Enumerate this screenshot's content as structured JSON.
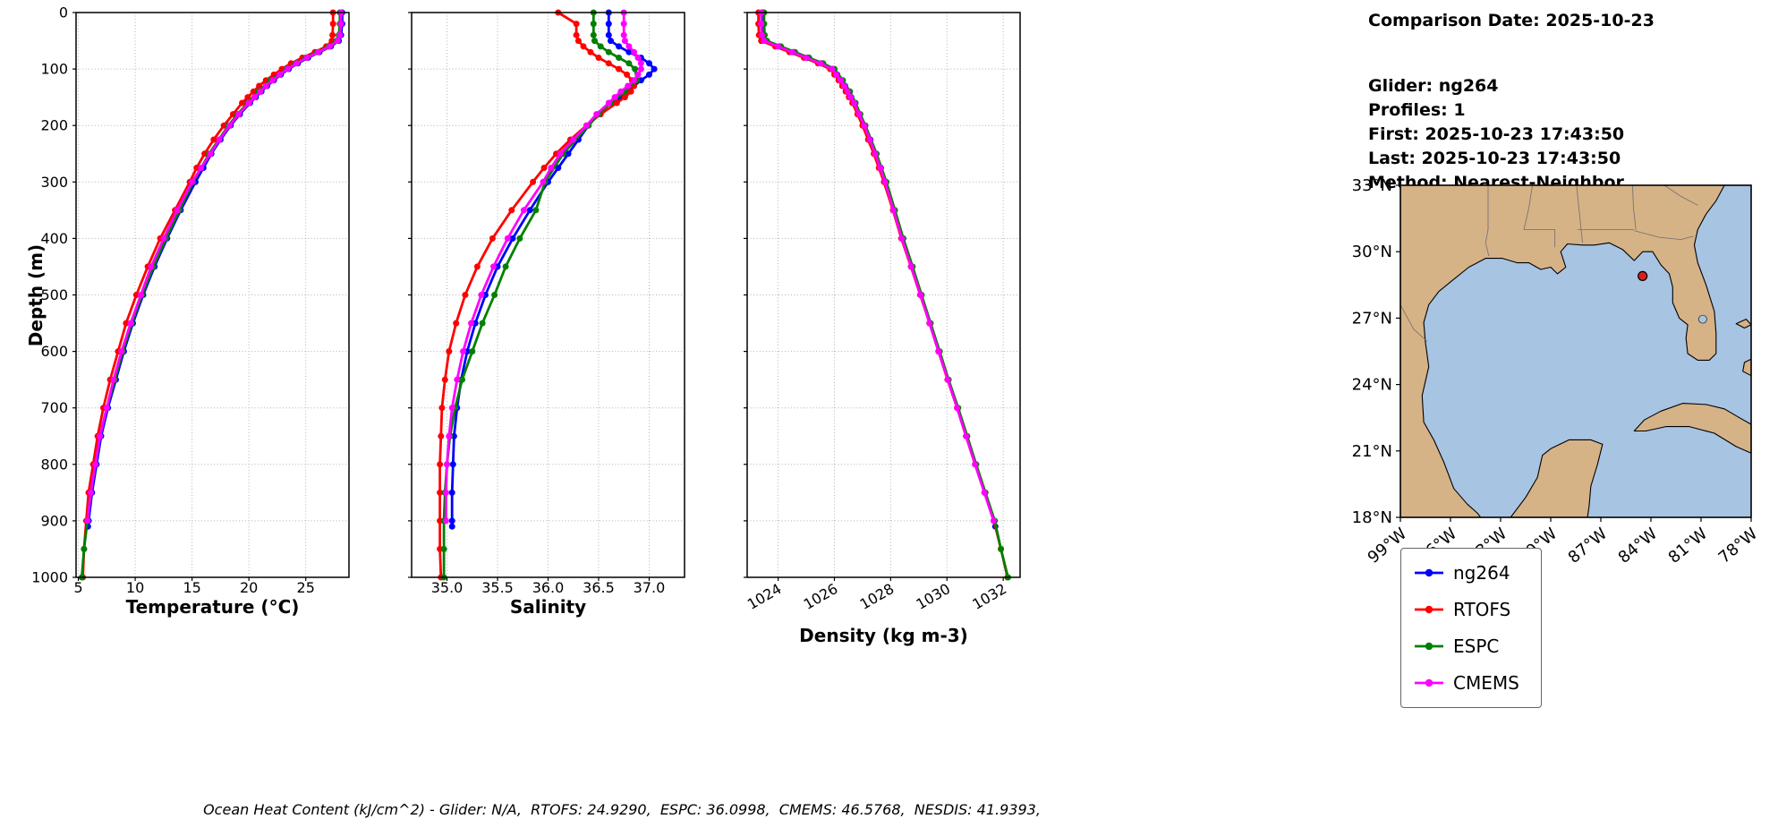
{
  "info": {
    "comparison_date": "Comparison Date: 2025-10-23",
    "glider": "Glider: ng264",
    "profiles": "Profiles: 1",
    "first": "First: 2025-10-23 17:43:50",
    "last": "Last: 2025-10-23 17:43:50",
    "method": "Method: Nearest-Neighbor"
  },
  "footer": "Ocean Heat Content (kJ/cm^2) - Glider: N/A,  RTOFS: 24.9290,  ESPC: 36.0998,  CMEMS: 46.5768,  NESDIS: 41.9393,",
  "legend": {
    "entries": [
      {
        "label": "ng264",
        "color": "#0000ff"
      },
      {
        "label": "RTOFS",
        "color": "#ff0000"
      },
      {
        "label": "ESPC",
        "color": "#008000"
      },
      {
        "label": "CMEMS",
        "color": "#ff00ff"
      }
    ]
  },
  "map": {
    "lon_range": [
      -99,
      -78
    ],
    "lat_range": [
      18,
      33
    ],
    "xticks": [
      -99,
      -96,
      -93,
      -90,
      -87,
      -84,
      -81,
      -78
    ],
    "xtick_labels": [
      "99°W",
      "96°W",
      "93°W",
      "90°W",
      "87°W",
      "84°W",
      "81°W",
      "78°W"
    ],
    "yticks": [
      33,
      30,
      27,
      24,
      21,
      18
    ],
    "ytick_labels": [
      "33°N",
      "30°N",
      "27°N",
      "24°N",
      "21°N",
      "18°N"
    ],
    "land_color": "#d6b287",
    "ocean_color": "#a7c4e2",
    "marker": {
      "name": "glider-position",
      "lon": -84.5,
      "lat": 28.9,
      "color": "#d62020"
    },
    "lake": {
      "name": "lake-okeechobee",
      "lon": -80.9,
      "lat": 26.95
    },
    "land": [
      [
        [
          -99,
          33
        ],
        [
          -79.6,
          33
        ],
        [
          -80.1,
          32.3
        ],
        [
          -80.7,
          31.7
        ],
        [
          -81.2,
          31.0
        ],
        [
          -81.4,
          30.3
        ],
        [
          -81.2,
          29.5
        ],
        [
          -80.7,
          28.5
        ],
        [
          -80.2,
          27.3
        ],
        [
          -80.1,
          26.3
        ],
        [
          -80.1,
          25.4
        ],
        [
          -80.5,
          25.1
        ],
        [
          -81.2,
          25.1
        ],
        [
          -81.8,
          25.4
        ],
        [
          -81.9,
          26.1
        ],
        [
          -81.8,
          26.7
        ],
        [
          -82.3,
          27.0
        ],
        [
          -82.7,
          27.7
        ],
        [
          -82.7,
          28.4
        ],
        [
          -82.9,
          29.0
        ],
        [
          -83.4,
          29.4
        ],
        [
          -83.9,
          30.0
        ],
        [
          -84.5,
          30.0
        ],
        [
          -85.0,
          29.6
        ],
        [
          -85.7,
          30.1
        ],
        [
          -86.5,
          30.4
        ],
        [
          -87.4,
          30.3
        ],
        [
          -88.1,
          30.3
        ],
        [
          -89.0,
          30.35
        ],
        [
          -89.4,
          30.0
        ],
        [
          -89.1,
          29.3
        ],
        [
          -89.6,
          29.0
        ],
        [
          -90.0,
          29.3
        ],
        [
          -90.6,
          29.2
        ],
        [
          -91.3,
          29.5
        ],
        [
          -92.0,
          29.5
        ],
        [
          -92.9,
          29.7
        ],
        [
          -93.9,
          29.7
        ],
        [
          -94.9,
          29.3
        ],
        [
          -95.9,
          28.7
        ],
        [
          -96.7,
          28.2
        ],
        [
          -97.3,
          27.6
        ],
        [
          -97.6,
          26.8
        ],
        [
          -97.5,
          25.9
        ],
        [
          -97.3,
          24.8
        ],
        [
          -97.7,
          23.5
        ],
        [
          -97.6,
          22.3
        ],
        [
          -97.0,
          21.5
        ],
        [
          -96.4,
          20.5
        ],
        [
          -95.8,
          19.3
        ],
        [
          -95.0,
          18.6
        ],
        [
          -94.4,
          18.2
        ],
        [
          -94.2,
          18.0
        ],
        [
          -99,
          18
        ]
      ],
      [
        [
          -92.4,
          18.0
        ],
        [
          -91.5,
          18.9
        ],
        [
          -90.8,
          19.8
        ],
        [
          -90.5,
          20.8
        ],
        [
          -90.0,
          21.1
        ],
        [
          -88.9,
          21.5
        ],
        [
          -87.6,
          21.5
        ],
        [
          -86.9,
          21.3
        ],
        [
          -87.2,
          20.4
        ],
        [
          -87.6,
          19.4
        ],
        [
          -87.7,
          18.5
        ],
        [
          -87.8,
          18.0
        ]
      ],
      [
        [
          -85.0,
          21.9
        ],
        [
          -84.4,
          22.4
        ],
        [
          -83.4,
          22.8
        ],
        [
          -82.1,
          23.15
        ],
        [
          -80.7,
          23.1
        ],
        [
          -79.6,
          22.9
        ],
        [
          -78.7,
          22.5
        ],
        [
          -78.0,
          22.2
        ],
        [
          -78.0,
          20.9
        ],
        [
          -78.9,
          21.2
        ],
        [
          -80.2,
          21.8
        ],
        [
          -81.7,
          22.1
        ],
        [
          -83.1,
          22.1
        ],
        [
          -84.3,
          21.9
        ]
      ],
      [
        [
          -78.9,
          26.75
        ],
        [
          -78.3,
          26.95
        ],
        [
          -78.0,
          26.7
        ],
        [
          -78.4,
          26.55
        ]
      ],
      [
        [
          -78.0,
          25.15
        ],
        [
          -78.4,
          25.0
        ],
        [
          -78.5,
          24.6
        ],
        [
          -78.0,
          24.4
        ]
      ]
    ],
    "borders": [
      [
        [
          -93.75,
          33
        ],
        [
          -93.75,
          31.0
        ],
        [
          -93.9,
          30.4
        ],
        [
          -93.7,
          29.8
        ]
      ],
      [
        [
          -91.1,
          33
        ],
        [
          -91.3,
          32.0
        ],
        [
          -91.6,
          31.0
        ],
        [
          -89.75,
          31.0
        ],
        [
          -89.75,
          30.2
        ]
      ],
      [
        [
          -88.45,
          33
        ],
        [
          -88.1,
          30.4
        ]
      ],
      [
        [
          -88.4,
          31.0
        ],
        [
          -85.0,
          31.0
        ]
      ],
      [
        [
          -85.1,
          33
        ],
        [
          -85.05,
          32.0
        ],
        [
          -84.9,
          31.0
        ]
      ],
      [
        [
          -85.0,
          30.95
        ],
        [
          -83.5,
          30.65
        ],
        [
          -82.2,
          30.55
        ],
        [
          -81.45,
          30.7
        ]
      ],
      [
        [
          -83.2,
          33
        ],
        [
          -82.2,
          32.5
        ],
        [
          -81.2,
          32.1
        ]
      ],
      [
        [
          -99,
          27.6
        ],
        [
          -98.2,
          26.5
        ],
        [
          -97.4,
          25.95
        ]
      ]
    ]
  },
  "chart_data": {
    "type": "line",
    "description": "Glider-vs-model vertical profile comparison, depth increasing downward",
    "grid": "dotted",
    "depth_axis": {
      "label": "Depth (m)",
      "lim": [
        0,
        1000
      ],
      "ticks": [
        0,
        100,
        200,
        300,
        400,
        500,
        600,
        700,
        800,
        900,
        1000
      ],
      "inverted": true
    },
    "panels": [
      {
        "var": "temperature",
        "xlabel": "Temperature (°C)",
        "xlim": [
          4.8,
          28.8
        ],
        "xticks": [
          5,
          10,
          15,
          20,
          25
        ],
        "xtick_labels": [
          "5",
          "10",
          "15",
          "20",
          "25"
        ],
        "rotate_xticks": 0,
        "show_depth_labels": true
      },
      {
        "var": "salinity",
        "xlabel": "Salinity",
        "xlim": [
          34.65,
          37.35
        ],
        "xticks": [
          35.0,
          35.5,
          36.0,
          36.5,
          37.0
        ],
        "xtick_labels": [
          "35.0",
          "35.5",
          "36.0",
          "36.5",
          "37.0"
        ],
        "rotate_xticks": 0,
        "show_depth_labels": false
      },
      {
        "var": "density",
        "xlabel": "Density (kg m-3)",
        "xlim": [
          1022.9,
          1032.6
        ],
        "xticks": [
          1024,
          1026,
          1028,
          1030,
          1032
        ],
        "xtick_labels": [
          "1024",
          "1026",
          "1028",
          "1030",
          "1032"
        ],
        "rotate_xticks": 30,
        "show_depth_labels": false
      }
    ],
    "series": [
      {
        "name": "ng264",
        "color": "#0000ff",
        "depth": [
          0,
          20,
          40,
          50,
          60,
          70,
          80,
          90,
          100,
          110,
          120,
          130,
          140,
          150,
          160,
          180,
          200,
          225,
          250,
          275,
          300,
          350,
          400,
          450,
          500,
          550,
          600,
          650,
          700,
          750,
          800,
          850,
          900,
          910
        ],
        "temperature": [
          28.2,
          28.2,
          28.1,
          27.9,
          27.2,
          26.2,
          25.2,
          24.3,
          23.5,
          22.8,
          22.2,
          21.6,
          21.1,
          20.6,
          20.1,
          19.2,
          18.4,
          17.5,
          16.7,
          16.0,
          15.3,
          14.0,
          12.8,
          11.7,
          10.7,
          9.8,
          9.0,
          8.3,
          7.6,
          7.0,
          6.6,
          6.2,
          5.9,
          5.85
        ],
        "salinity": [
          36.6,
          36.6,
          36.6,
          36.62,
          36.7,
          36.8,
          36.92,
          37.0,
          37.05,
          37.0,
          36.92,
          36.85,
          36.78,
          36.7,
          36.62,
          36.5,
          36.4,
          36.3,
          36.2,
          36.1,
          36.0,
          35.82,
          35.65,
          35.5,
          35.38,
          35.28,
          35.2,
          35.14,
          35.1,
          35.07,
          35.06,
          35.05,
          35.05,
          35.05
        ],
        "density": [
          1023.45,
          1023.45,
          1023.47,
          1023.55,
          1024.05,
          1024.55,
          1025.05,
          1025.55,
          1025.95,
          1026.1,
          1026.25,
          1026.38,
          1026.5,
          1026.6,
          1026.72,
          1026.9,
          1027.08,
          1027.28,
          1027.47,
          1027.65,
          1027.82,
          1028.12,
          1028.42,
          1028.75,
          1029.08,
          1029.4,
          1029.72,
          1030.05,
          1030.38,
          1030.7,
          1031.02,
          1031.35,
          1031.68,
          1031.72
        ]
      },
      {
        "name": "RTOFS",
        "color": "#ff0000",
        "depth": [
          0,
          20,
          40,
          50,
          60,
          70,
          80,
          90,
          100,
          110,
          120,
          130,
          140,
          150,
          160,
          180,
          200,
          225,
          250,
          275,
          300,
          350,
          400,
          450,
          500,
          550,
          600,
          650,
          700,
          750,
          800,
          850,
          900,
          950,
          1000
        ],
        "temperature": [
          27.4,
          27.4,
          27.35,
          27.3,
          26.8,
          25.8,
          24.7,
          23.7,
          22.9,
          22.2,
          21.5,
          20.9,
          20.4,
          19.9,
          19.4,
          18.6,
          17.8,
          16.9,
          16.1,
          15.4,
          14.8,
          13.5,
          12.2,
          11.1,
          10.1,
          9.2,
          8.5,
          7.8,
          7.2,
          6.7,
          6.3,
          5.9,
          5.7,
          5.5,
          5.4
        ],
        "salinity": [
          36.1,
          36.28,
          36.28,
          36.3,
          36.35,
          36.42,
          36.5,
          36.6,
          36.7,
          36.78,
          36.83,
          36.85,
          36.82,
          36.76,
          36.68,
          36.52,
          36.38,
          36.22,
          36.08,
          35.96,
          35.85,
          35.64,
          35.45,
          35.3,
          35.18,
          35.09,
          35.02,
          34.98,
          34.95,
          34.94,
          34.93,
          34.93,
          34.93,
          34.93,
          34.94
        ],
        "density": [
          1023.3,
          1023.3,
          1023.32,
          1023.4,
          1023.9,
          1024.4,
          1024.92,
          1025.42,
          1025.85,
          1026.0,
          1026.15,
          1026.28,
          1026.4,
          1026.52,
          1026.64,
          1026.82,
          1027.0,
          1027.2,
          1027.4,
          1027.58,
          1027.76,
          1028.08,
          1028.38,
          1028.72,
          1029.05,
          1029.38,
          1029.7,
          1030.02,
          1030.36,
          1030.68,
          1031.0,
          1031.34,
          1031.67,
          1031.92,
          1032.15
        ]
      },
      {
        "name": "ESPC",
        "color": "#008000",
        "depth": [
          0,
          20,
          40,
          50,
          60,
          70,
          80,
          90,
          100,
          120,
          140,
          160,
          180,
          200,
          250,
          300,
          350,
          400,
          450,
          500,
          550,
          600,
          650,
          700,
          750,
          800,
          850,
          900,
          950,
          1000
        ],
        "temperature": [
          28.0,
          28.0,
          27.9,
          27.7,
          27.0,
          26.0,
          25.0,
          24.1,
          23.3,
          21.9,
          20.8,
          19.9,
          19.0,
          18.2,
          16.5,
          15.1,
          13.9,
          12.7,
          11.6,
          10.6,
          9.7,
          8.9,
          8.2,
          7.5,
          6.9,
          6.5,
          6.1,
          5.8,
          5.5,
          5.3
        ],
        "salinity": [
          36.45,
          36.45,
          36.45,
          36.46,
          36.52,
          36.6,
          36.7,
          36.8,
          36.86,
          36.88,
          36.76,
          36.62,
          36.5,
          36.4,
          36.15,
          35.97,
          35.88,
          35.72,
          35.58,
          35.47,
          35.35,
          35.25,
          35.15,
          35.08,
          35.03,
          35.0,
          34.98,
          34.97,
          34.97,
          34.97
        ],
        "density": [
          1023.5,
          1023.5,
          1023.52,
          1023.6,
          1024.1,
          1024.6,
          1025.1,
          1025.6,
          1026.0,
          1026.3,
          1026.55,
          1026.75,
          1026.92,
          1027.1,
          1027.5,
          1027.85,
          1028.15,
          1028.45,
          1028.78,
          1029.1,
          1029.42,
          1029.74,
          1030.06,
          1030.4,
          1030.72,
          1031.04,
          1031.37,
          1031.7,
          1031.92,
          1032.17
        ]
      },
      {
        "name": "CMEMS",
        "color": "#ff00ff",
        "depth": [
          0,
          20,
          40,
          50,
          60,
          70,
          80,
          90,
          100,
          110,
          120,
          130,
          140,
          150,
          160,
          180,
          200,
          225,
          250,
          275,
          300,
          350,
          400,
          450,
          500,
          550,
          600,
          650,
          700,
          750,
          800,
          850,
          900
        ],
        "temperature": [
          28.1,
          28.1,
          28.0,
          27.8,
          27.1,
          26.1,
          25.1,
          24.2,
          23.4,
          22.7,
          22.1,
          21.5,
          21.0,
          20.5,
          20.0,
          19.1,
          18.3,
          17.4,
          16.6,
          15.8,
          15.0,
          13.7,
          12.5,
          11.4,
          10.5,
          9.6,
          8.8,
          8.1,
          7.5,
          6.9,
          6.5,
          6.1,
          5.8
        ],
        "salinity": [
          36.75,
          36.75,
          36.75,
          36.76,
          36.8,
          36.85,
          36.89,
          36.92,
          36.92,
          36.89,
          36.85,
          36.79,
          36.72,
          36.66,
          36.6,
          36.48,
          36.38,
          36.25,
          36.12,
          36.03,
          35.95,
          35.76,
          35.6,
          35.46,
          35.34,
          35.24,
          35.16,
          35.1,
          35.05,
          35.02,
          35.0,
          34.99,
          34.99
        ],
        "density": [
          1023.4,
          1023.4,
          1023.42,
          1023.5,
          1024.0,
          1024.5,
          1025.0,
          1025.5,
          1025.92,
          1026.07,
          1026.22,
          1026.35,
          1026.47,
          1026.58,
          1026.7,
          1026.88,
          1027.06,
          1027.26,
          1027.45,
          1027.63,
          1027.8,
          1028.1,
          1028.4,
          1028.73,
          1029.06,
          1029.38,
          1029.7,
          1030.03,
          1030.36,
          1030.68,
          1031.0,
          1031.33,
          1031.66
        ]
      }
    ]
  }
}
